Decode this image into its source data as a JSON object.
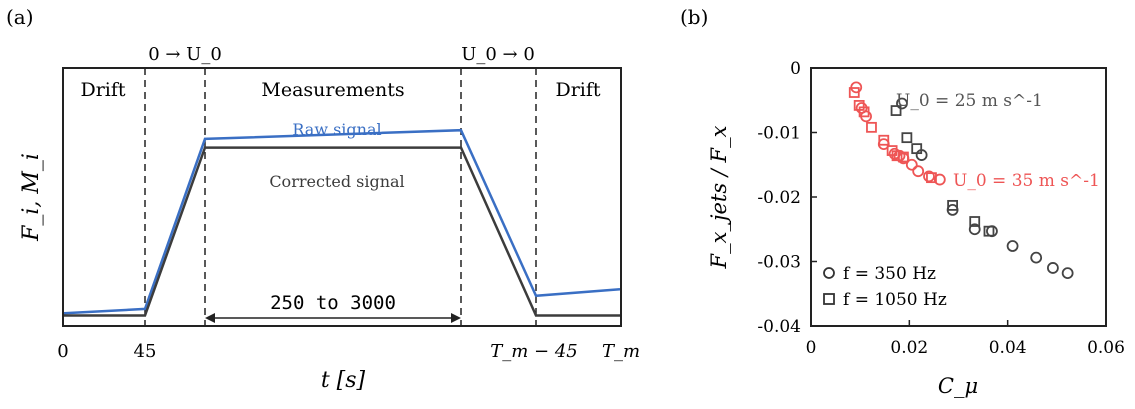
{
  "panel_a": {
    "label": "(a)",
    "ylabel": "F_i, M_i",
    "xlabel": "t [s]",
    "xticks": [
      "0",
      "45",
      "T_m − 45",
      "T_m"
    ],
    "phase_labels": [
      "Drift",
      "Measurements",
      "Drift"
    ],
    "transition_labels": [
      "0 → U_0",
      "U_0 → 0"
    ],
    "duration_label": "250 to 3000",
    "series_labels": [
      "Raw signal",
      "Corrected signal"
    ],
    "colors": {
      "raw": "#3a6fc4",
      "corrected": "#3c3c3c"
    }
  },
  "panel_b": {
    "label": "(b)",
    "ylabel": "F_x_jets / F_x",
    "xlabel": "C_μ",
    "annotations": [
      {
        "text": "U_0 = 25 m s^-1",
        "color": "#555555"
      },
      {
        "text": "U_0 = 35 m s^-1",
        "color": "#ee5555"
      }
    ],
    "legend": [
      {
        "marker": "circle",
        "text": "f = 350 Hz"
      },
      {
        "marker": "square",
        "text": "f = 1050 Hz"
      }
    ],
    "colors": {
      "u25": "#444444",
      "u35": "#ee5555"
    }
  },
  "chart_data": [
    {
      "type": "line",
      "title": "",
      "xlabel": "t [s]",
      "ylabel": "F_i, M_i",
      "xtick_labels": [
        "0",
        "45",
        "T_m − 45",
        "T_m"
      ],
      "series": [
        {
          "name": "Raw signal",
          "x": [
            "0",
            "45",
            "phase-start",
            "phase-end",
            "T_m − 45",
            "T_m"
          ],
          "values": [
            0.04,
            0.06,
            0.84,
            0.88,
            0.12,
            0.15
          ]
        },
        {
          "name": "Corrected signal",
          "x": [
            "0",
            "45",
            "phase-start",
            "phase-end",
            "T_m − 45",
            "T_m"
          ],
          "values": [
            0.03,
            0.03,
            0.8,
            0.8,
            0.03,
            0.03
          ]
        }
      ]
    },
    {
      "type": "scatter",
      "title": "",
      "xlabel": "C_μ",
      "ylabel": "F_x_jets / F_x",
      "xlim": [
        0,
        0.06
      ],
      "ylim": [
        -0.04,
        0
      ],
      "xticks": [
        "0",
        "0.02",
        "0.04",
        "0.06"
      ],
      "yticks": [
        "0",
        "-0.01",
        "-0.02",
        "-0.03",
        "-0.04"
      ],
      "series": [
        {
          "name": "f = 350 Hz, U_0 = 25 m s^-1",
          "marker": "circle",
          "color": "#444444",
          "points": [
            [
              0.0185,
              -0.0055
            ],
            [
              0.0225,
              -0.0135
            ],
            [
              0.0288,
              -0.022
            ],
            [
              0.0333,
              -0.025
            ],
            [
              0.0368,
              -0.0253
            ],
            [
              0.041,
              -0.0276
            ],
            [
              0.0458,
              -0.0294
            ],
            [
              0.0492,
              -0.031
            ],
            [
              0.0522,
              -0.0318
            ]
          ]
        },
        {
          "name": "f = 1050 Hz, U_0 = 25 m s^-1",
          "marker": "square",
          "color": "#444444",
          "points": [
            [
              0.0173,
              -0.0066
            ],
            [
              0.0195,
              -0.0108
            ],
            [
              0.0215,
              -0.0125
            ],
            [
              0.0288,
              -0.0213
            ],
            [
              0.0333,
              -0.0238
            ],
            [
              0.0362,
              -0.0253
            ]
          ]
        },
        {
          "name": "f = 350 Hz, U_0 = 35 m s^-1",
          "marker": "circle",
          "color": "#ee5555",
          "points": [
            [
              0.0092,
              -0.003
            ],
            [
              0.0103,
              -0.0062
            ],
            [
              0.0112,
              -0.0075
            ],
            [
              0.0148,
              -0.0118
            ],
            [
              0.017,
              -0.0133
            ],
            [
              0.018,
              -0.0136
            ],
            [
              0.0188,
              -0.014
            ],
            [
              0.0205,
              -0.015
            ],
            [
              0.0218,
              -0.016
            ],
            [
              0.024,
              -0.0168
            ],
            [
              0.0262,
              -0.0173
            ]
          ]
        },
        {
          "name": "f = 1050 Hz, U_0 = 35 m s^-1",
          "marker": "square",
          "color": "#ee5555",
          "points": [
            [
              0.0088,
              -0.0038
            ],
            [
              0.0098,
              -0.0058
            ],
            [
              0.0108,
              -0.0068
            ],
            [
              0.0123,
              -0.0092
            ],
            [
              0.0148,
              -0.0112
            ],
            [
              0.0165,
              -0.0128
            ],
            [
              0.0175,
              -0.0136
            ],
            [
              0.0188,
              -0.0138
            ],
            [
              0.0245,
              -0.017
            ]
          ]
        }
      ]
    }
  ]
}
